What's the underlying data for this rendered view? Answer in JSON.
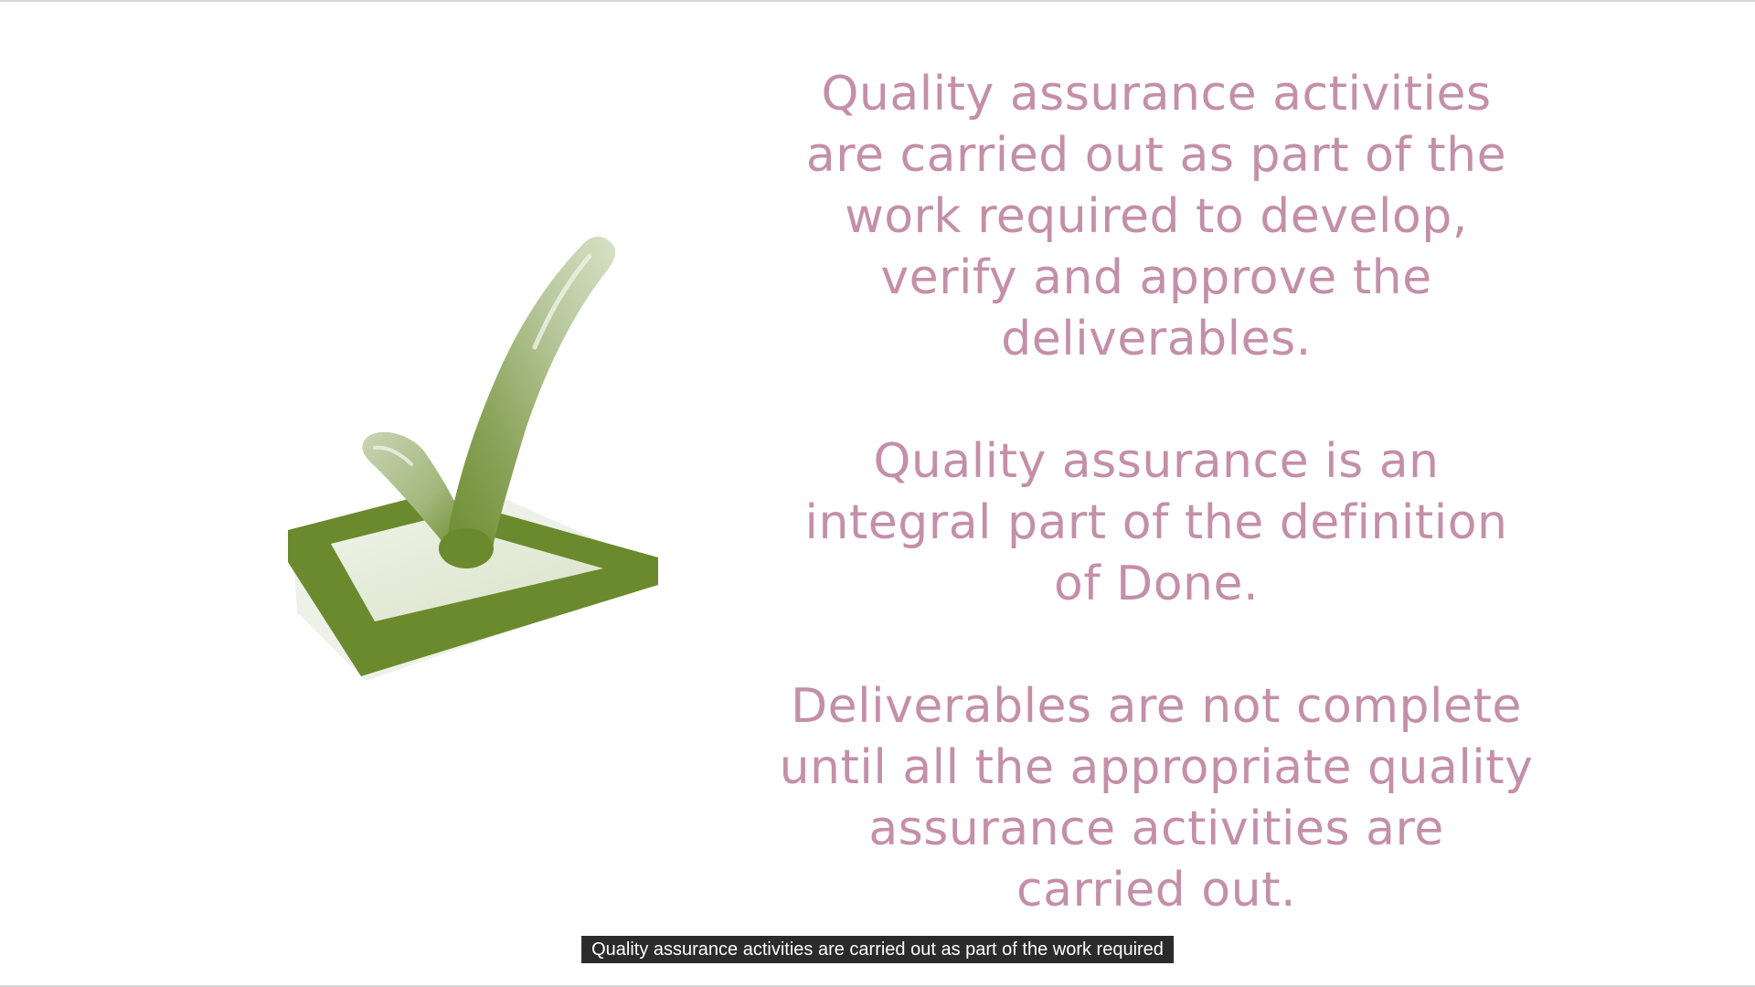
{
  "slide": {
    "paragraphs": [
      "Quality assurance activities are carried out as part of the work required to develop, verify and approve the deliverables.",
      "Quality assurance is an integral part of the definition of Done.",
      "Deliverables are not complete until all the appropriate quality assurance activities are carried out."
    ],
    "illustration_icon": "checkbox-checkmark-icon",
    "text_color": "#c48fa8",
    "accent_green": "#6b8a2e"
  },
  "caption": {
    "text": "Quality assurance activities are carried out as part of the work required"
  }
}
